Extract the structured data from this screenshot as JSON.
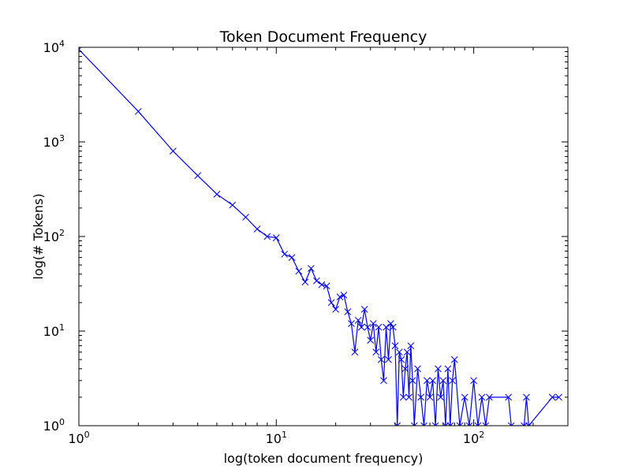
{
  "chart_data": {
    "type": "line",
    "title": "Token Document Frequency",
    "xlabel": "log(token document frequency)",
    "ylabel": "log(# Tokens)",
    "xscale": "log",
    "yscale": "log",
    "xlim": [
      1,
      300
    ],
    "ylim": [
      1,
      10000
    ],
    "grid": false,
    "legend": "none",
    "series_color": "#0000ff",
    "marker": "x",
    "x_ticks": [
      {
        "value": 1,
        "base": "10",
        "exp": "0"
      },
      {
        "value": 10,
        "base": "10",
        "exp": "1"
      },
      {
        "value": 100,
        "base": "10",
        "exp": "2"
      }
    ],
    "y_ticks": [
      {
        "value": 1,
        "base": "10",
        "exp": "0"
      },
      {
        "value": 10,
        "base": "10",
        "exp": "1"
      },
      {
        "value": 100,
        "base": "10",
        "exp": "2"
      },
      {
        "value": 1000,
        "base": "10",
        "exp": "3"
      },
      {
        "value": 10000,
        "base": "10",
        "exp": "4"
      }
    ],
    "series": [
      {
        "x": [
          1,
          2,
          3,
          4,
          5,
          6,
          7,
          8,
          9,
          10,
          11,
          12,
          13,
          14,
          15,
          16,
          17,
          18,
          19,
          20,
          21,
          22,
          23,
          24,
          25,
          26,
          27,
          28,
          29,
          30,
          31,
          32,
          33,
          34,
          35,
          36,
          37,
          38,
          39,
          40,
          41,
          42,
          43,
          44,
          45,
          46,
          47,
          48,
          49,
          50,
          52,
          54,
          56,
          58,
          60,
          62,
          64,
          66,
          68,
          70,
          72,
          74,
          76,
          78,
          80,
          85,
          90,
          95,
          100,
          105,
          110,
          115,
          120,
          150,
          155,
          180,
          185,
          190,
          250,
          270
        ],
        "y": [
          9500,
          2100,
          800,
          440,
          280,
          215,
          160,
          120,
          100,
          97,
          65,
          60,
          43,
          33,
          46,
          34,
          31,
          30,
          20,
          17,
          23,
          24,
          16,
          12,
          6,
          13,
          11,
          17,
          11,
          8,
          12,
          6,
          11,
          5,
          3,
          11,
          5,
          12,
          11,
          7,
          1,
          6,
          5,
          2,
          4,
          6,
          2,
          7,
          3,
          1,
          4,
          2,
          1,
          3,
          2,
          3,
          1,
          4,
          2,
          3,
          1,
          4,
          1,
          3,
          5,
          1,
          2,
          1,
          3,
          1,
          2,
          1,
          2,
          2,
          1,
          1,
          2,
          1,
          2,
          2
        ]
      }
    ]
  }
}
